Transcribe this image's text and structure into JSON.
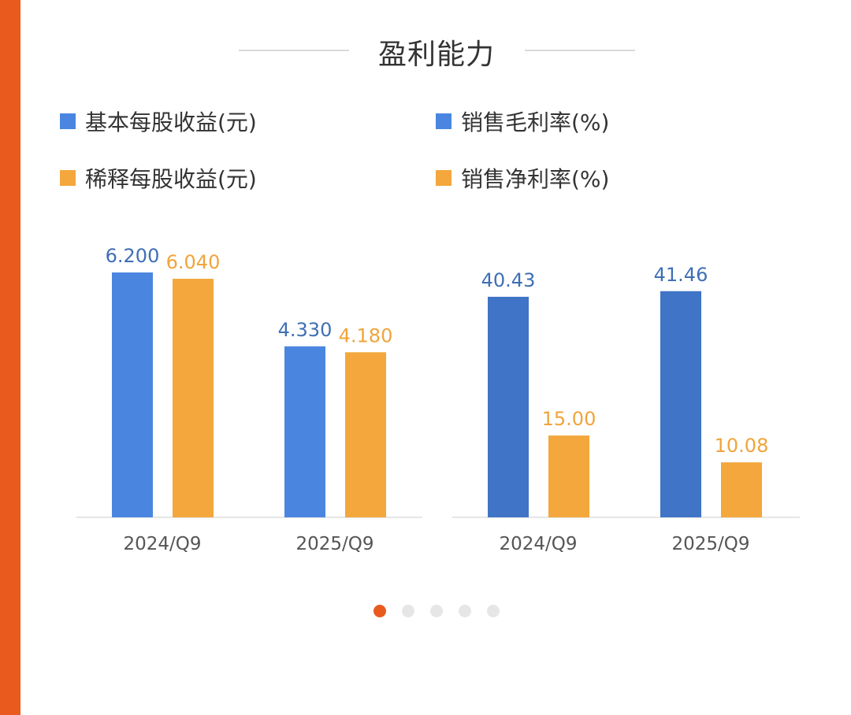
{
  "title": "盈利能力",
  "legend_left": [
    {
      "label": "基本每股收益(元)",
      "color": "#4a86e0"
    },
    {
      "label": "稀释每股收益(元)",
      "color": "#f3a73c"
    }
  ],
  "legend_right": [
    {
      "label": "销售毛利率(%)",
      "color": "#4a86e0"
    },
    {
      "label": "销售净利率(%)",
      "color": "#f3a73c"
    }
  ],
  "chart_data": [
    {
      "type": "bar",
      "categories": [
        "2024/Q9",
        "2025/Q9"
      ],
      "series": [
        {
          "name": "基本每股收益(元)",
          "values": [
            6.2,
            4.33
          ],
          "labels": [
            "6.200",
            "4.330"
          ],
          "color": "#4a86e0"
        },
        {
          "name": "稀释每股收益(元)",
          "values": [
            6.04,
            4.18
          ],
          "labels": [
            "6.040",
            "4.180"
          ],
          "color": "#f3a73c"
        }
      ],
      "grid": false,
      "legend": "top"
    },
    {
      "type": "bar",
      "categories": [
        "2024/Q9",
        "2025/Q9"
      ],
      "series": [
        {
          "name": "销售毛利率(%)",
          "values": [
            40.43,
            41.46
          ],
          "labels": [
            "40.43",
            "41.46"
          ],
          "color": "#3f74c6"
        },
        {
          "name": "销售净利率(%)",
          "values": [
            15.0,
            10.08
          ],
          "labels": [
            "15.00",
            "10.08"
          ],
          "color": "#f3a73c"
        }
      ],
      "grid": false,
      "legend": "top"
    }
  ],
  "pager": {
    "count": 5,
    "active": 0
  },
  "colors": {
    "accent": "#e85a1e",
    "blue": "#4a86e0",
    "dark_blue": "#3f74c6",
    "orange": "#f3a73c"
  }
}
